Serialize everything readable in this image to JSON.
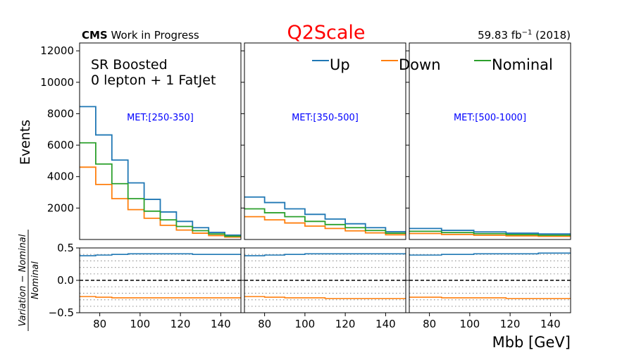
{
  "header": {
    "cms_bold": "CMS",
    "cms_rest": " Work in Progress",
    "title": "Q2Scale",
    "lumi_value": "59.83 fb",
    "lumi_exp": "−1",
    "lumi_year": " (2018)"
  },
  "annotation": {
    "region": "SR Boosted",
    "selection": "0 lepton + 1 FatJet"
  },
  "colors": {
    "up": "#1f77b4",
    "down": "#ff7f0e",
    "nominal": "#2ca02c",
    "title": "#ff0000",
    "panel_label": "#0000ff"
  },
  "chart_data": {
    "type": "line",
    "drawstyle": "steps",
    "title": "Q2Scale",
    "xlabel": "Mbb [GeV]",
    "ylabel": "Events",
    "ratio_ylabel_numerator": "Variation − Nominal",
    "ratio_ylabel_denominator": "Nominal",
    "legend": [
      "Up",
      "Down",
      "Nominal"
    ],
    "legend_position": "top",
    "xlim": [
      70,
      150
    ],
    "ylim": [
      0,
      12500
    ],
    "ratio_ylim": [
      -0.5,
      0.5
    ],
    "y_ticks": [
      2000,
      4000,
      6000,
      8000,
      10000,
      12000
    ],
    "y_tick_labels": [
      "2000",
      "4000",
      "6000",
      "8000",
      "10000",
      "12000"
    ],
    "x_ticks": [
      80,
      100,
      120,
      140
    ],
    "x_tick_labels": [
      "80",
      "100",
      "120",
      "140"
    ],
    "ratio_ticks": [
      -0.5,
      0.0,
      0.5
    ],
    "ratio_tick_labels": [
      "−0.5",
      "0.0",
      "0.5"
    ],
    "ratio_grid": [
      -0.4,
      -0.3,
      -0.2,
      -0.1,
      0.1,
      0.2,
      0.3,
      0.4
    ],
    "panels": [
      {
        "label": "MET:[250-350]",
        "edges": [
          70,
          78,
          86,
          94,
          102,
          110,
          118,
          126,
          134,
          142,
          150
        ],
        "series": [
          {
            "name": "Up",
            "values": [
              8450,
              6650,
              5050,
              3600,
              2550,
              1750,
              1150,
              750,
              450,
              280
            ]
          },
          {
            "name": "Down",
            "values": [
              4600,
              3500,
              2600,
              1900,
              1350,
              900,
              600,
              400,
              250,
              150
            ]
          },
          {
            "name": "Nominal",
            "values": [
              6150,
              4800,
              3550,
              2600,
              1800,
              1250,
              830,
              560,
              350,
              210
            ]
          }
        ],
        "ratio_up": [
          0.38,
          0.39,
          0.4,
          0.41,
          0.41,
          0.41,
          0.41,
          0.4,
          0.4,
          0.4
        ],
        "ratio_down": [
          -0.25,
          -0.26,
          -0.27,
          -0.27,
          -0.27,
          -0.27,
          -0.27,
          -0.27,
          -0.27,
          -0.27
        ]
      },
      {
        "label": "MET:[350-500]",
        "edges": [
          70,
          80,
          90,
          100,
          110,
          120,
          130,
          140,
          150
        ],
        "series": [
          {
            "name": "Up",
            "values": [
              2700,
              2350,
              1950,
              1600,
              1300,
              1000,
              750,
              500
            ]
          },
          {
            "name": "Down",
            "values": [
              1450,
              1250,
              1050,
              850,
              700,
              550,
              420,
              300
            ]
          },
          {
            "name": "Nominal",
            "values": [
              1950,
              1700,
              1450,
              1150,
              950,
              750,
              570,
              400
            ]
          }
        ],
        "ratio_up": [
          0.38,
          0.39,
          0.4,
          0.41,
          0.41,
          0.41,
          0.41,
          0.41
        ],
        "ratio_down": [
          -0.25,
          -0.26,
          -0.27,
          -0.27,
          -0.28,
          -0.28,
          -0.28,
          -0.28
        ]
      },
      {
        "label": "MET:[500-1000]",
        "edges": [
          70,
          86,
          102,
          118,
          134,
          150
        ],
        "series": [
          {
            "name": "Up",
            "values": [
              700,
              580,
              480,
              400,
              350
            ]
          },
          {
            "name": "Down",
            "values": [
              380,
              320,
              270,
              230,
              200
            ]
          },
          {
            "name": "Nominal",
            "values": [
              520,
              440,
              370,
              310,
              270
            ]
          }
        ],
        "ratio_up": [
          0.39,
          0.4,
          0.41,
          0.41,
          0.42
        ],
        "ratio_down": [
          -0.26,
          -0.27,
          -0.27,
          -0.28,
          -0.28
        ]
      }
    ]
  }
}
